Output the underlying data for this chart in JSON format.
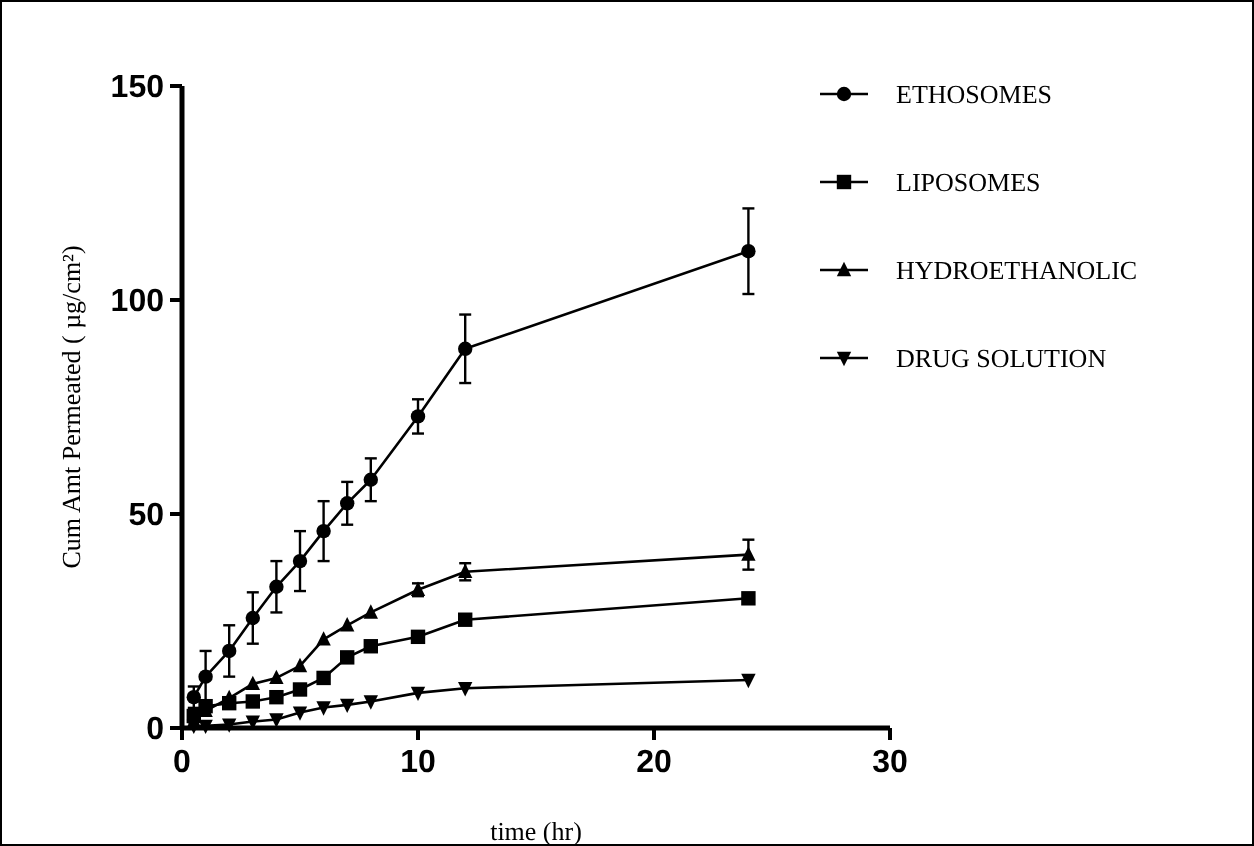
{
  "chart_data": {
    "type": "line",
    "xlabel": "time (hr)",
    "ylabel": "Cum Amt Permeated ( µg/cm²)",
    "xlim": [
      0,
      30
    ],
    "xticks": [
      0,
      10,
      20,
      30
    ],
    "ylim": [
      0,
      150
    ],
    "yticks": [
      0,
      50,
      100,
      150
    ],
    "grid": false,
    "legend": "right",
    "line_style": "solid",
    "x": [
      0.5,
      1,
      2,
      3,
      4,
      5,
      6,
      7,
      8,
      10,
      12,
      24
    ],
    "series": [
      {
        "name": "ETHOSOMES",
        "color": "#000000",
        "marker": "circle",
        "values": [
          7.2,
          12,
          18,
          25.7,
          33,
          39,
          46,
          52.5,
          58,
          72.8,
          88.6,
          111.4
        ],
        "errors": [
          2.5,
          6,
          6,
          6,
          6,
          7,
          7,
          5,
          5,
          4,
          8,
          10
        ]
      },
      {
        "name": "LIPOSOMES",
        "color": "#000000",
        "marker": "square",
        "values": [
          2.8,
          5.1,
          5.8,
          6.2,
          7.2,
          9,
          11.7,
          16.5,
          19.1,
          21.3,
          25.3,
          30.3
        ]
      },
      {
        "name": "HYDROETHANOLIC",
        "color": "#000000",
        "marker": "triangle",
        "values": [
          1.5,
          4,
          7,
          10.3,
          11.7,
          14.5,
          20.7,
          24,
          27,
          32.3,
          36.5,
          40.5
        ],
        "errors": [
          null,
          null,
          null,
          null,
          null,
          null,
          null,
          null,
          null,
          1.5,
          2,
          3.5
        ]
      },
      {
        "name": "DRUG SOLUTION",
        "color": "#000000",
        "marker": "triangle-down",
        "values": [
          0.5,
          0.5,
          0.8,
          1.5,
          2,
          3.6,
          4.8,
          5.4,
          6.2,
          8.2,
          9.3,
          11.2
        ]
      }
    ]
  }
}
